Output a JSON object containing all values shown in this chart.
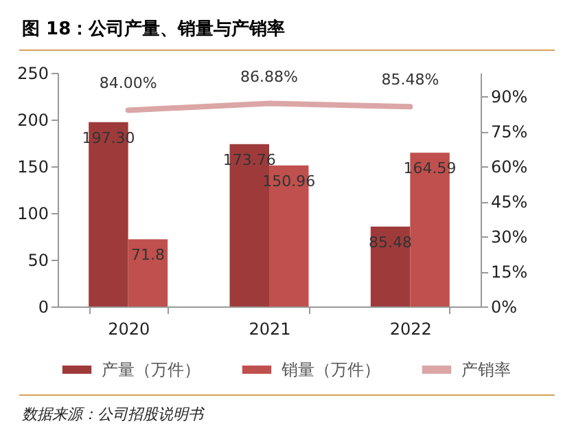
{
  "chart_data": {
    "type": "bar",
    "title": "图 18：公司产量、销量与产销率",
    "annotations": [
      "数据来源：公司招股说明书"
    ],
    "categories": [
      "2020",
      "2021",
      "2022"
    ],
    "series": [
      {
        "name": "产量（万件）",
        "color": "#9e3b3a",
        "values": [
          197.3,
          173.76,
          85.48
        ],
        "value_labels": [
          "197.30",
          "173.76",
          "85.48"
        ]
      },
      {
        "name": "销量（万件）",
        "color": "#c0504d",
        "values": [
          71.8,
          150.96,
          164.59
        ],
        "value_labels": [
          "71.8",
          "150.96",
          "164.59"
        ]
      },
      {
        "name": "产销率",
        "type": "line",
        "axis": "y2",
        "color": "#dca6a6",
        "values": [
          84.0,
          86.88,
          85.48
        ],
        "value_labels": [
          "84.00%",
          "86.88%",
          "85.48%"
        ]
      }
    ],
    "ylim": [
      0,
      250
    ],
    "yticks": [
      0,
      50,
      100,
      150,
      200,
      250
    ],
    "y2lim": [
      0,
      100
    ],
    "y2ticks": [
      {
        "value": 0,
        "label": "0%"
      },
      {
        "value": 15,
        "label": "15%"
      },
      {
        "value": 30,
        "label": "30%"
      },
      {
        "value": 45,
        "label": "45%"
      },
      {
        "value": 60,
        "label": "60%"
      },
      {
        "value": 75,
        "label": "75%"
      },
      {
        "value": 90,
        "label": "90%"
      }
    ],
    "legend": "bottom",
    "grid": false
  }
}
